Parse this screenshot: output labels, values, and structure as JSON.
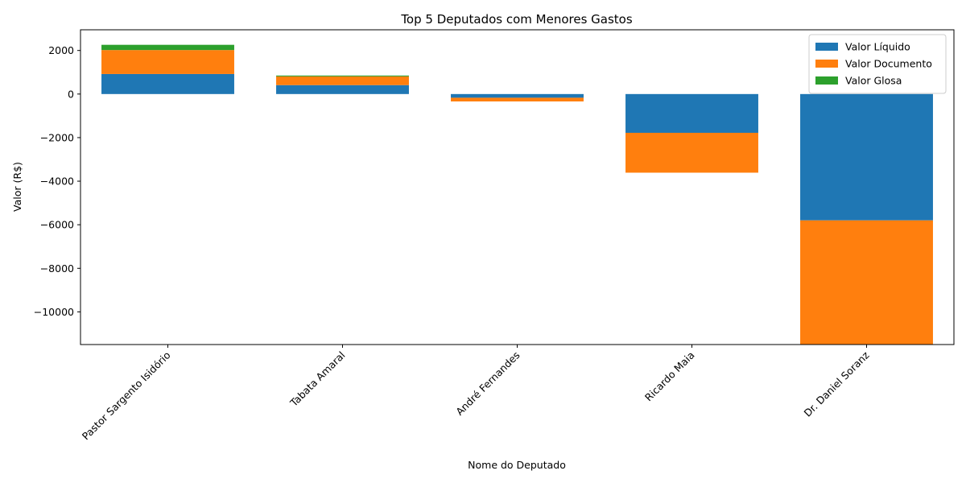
{
  "chart_data": {
    "type": "bar",
    "stacked": true,
    "title": "Top 5 Deputados com Menores Gastos",
    "xlabel": "Nome do Deputado",
    "ylabel": "Valor (R$)",
    "categories": [
      "Pastor Sargento Isidório",
      "Tabata Amaral",
      "André Fernandes",
      "Ricardo Maia",
      "Dr. Daniel Soranz"
    ],
    "series": [
      {
        "name": "Valor Líquido",
        "color": "#1f77b4",
        "values": [
          920,
          410,
          -170,
          -1780,
          -5800
        ]
      },
      {
        "name": "Valor Documento",
        "color": "#ff7f0e",
        "values": [
          1100,
          400,
          -170,
          -1830,
          -5900
        ]
      },
      {
        "name": "Valor Glosa",
        "color": "#2ca02c",
        "values": [
          240,
          40,
          0,
          0,
          0
        ]
      }
    ],
    "ylim": [
      -11500,
      2950
    ],
    "yticks": [
      2000,
      0,
      -2000,
      -4000,
      -6000,
      -8000,
      -10000
    ],
    "ytick_labels": [
      "2000",
      "0",
      "−2000",
      "−4000",
      "−6000",
      "−8000",
      "−10000"
    ],
    "legend_position": "upper right",
    "grid": false
  }
}
